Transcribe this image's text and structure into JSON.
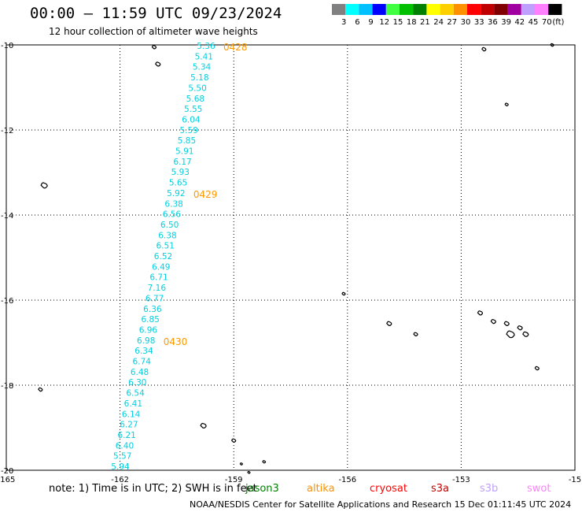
{
  "header": {
    "title": "00:00 – 11:59 UTC 09/23/2024",
    "subtitle": "12 hour collection of altimeter wave heights"
  },
  "legend": {
    "unit": "(ft)",
    "bins": [
      {
        "label": "3",
        "color": "#808080"
      },
      {
        "label": "6",
        "color": "#00ffff"
      },
      {
        "label": "9",
        "color": "#00c0ff"
      },
      {
        "label": "12",
        "color": "#0000ff"
      },
      {
        "label": "15",
        "color": "#40ff40"
      },
      {
        "label": "18",
        "color": "#00c000"
      },
      {
        "label": "21",
        "color": "#008000"
      },
      {
        "label": "24",
        "color": "#ffff00"
      },
      {
        "label": "27",
        "color": "#ffd000"
      },
      {
        "label": "30",
        "color": "#ff9000"
      },
      {
        "label": "33",
        "color": "#ff0000"
      },
      {
        "label": "36",
        "color": "#c00000"
      },
      {
        "label": "39",
        "color": "#800000"
      },
      {
        "label": "42",
        "color": "#a000a0"
      },
      {
        "label": "45",
        "color": "#c0a0ff"
      },
      {
        "label": "70",
        "color": "#ff80ff"
      },
      {
        "label": "",
        "color": "#000000"
      }
    ]
  },
  "axes": {
    "lon_ticks": [
      "-165",
      "-162",
      "-159",
      "-156",
      "-153",
      "-15"
    ],
    "lat_ticks": [
      "-10",
      "-12",
      "-14",
      "-16",
      "-18",
      "-20"
    ]
  },
  "chart_data": {
    "type": "scatter",
    "x_range": [
      -165,
      -150
    ],
    "y_range": [
      -20,
      -10
    ],
    "track_color": "#00d0e0",
    "track_values": [
      "5.36",
      "5.41",
      "5.34",
      "5.18",
      "5.50",
      "5.68",
      "5.55",
      "6.04",
      "5.59",
      "5.85",
      "5.91",
      "6.17",
      "5.93",
      "5.65",
      "5.92",
      "6.38",
      "6.56",
      "6.50",
      "6.38",
      "6.51",
      "6.52",
      "6.49",
      "6.71",
      "7.16",
      "6.77",
      "6.36",
      "6.85",
      "6.96",
      "6.98",
      "6.34",
      "6.74",
      "6.48",
      "6.30",
      "6.54",
      "6.41",
      "6.14",
      "6.27",
      "6.21",
      "6.40",
      "5.57",
      "5.94"
    ],
    "time_labels": [
      {
        "text": "0428",
        "track_index": 0
      },
      {
        "text": "0429",
        "track_index": 14
      },
      {
        "text": "0430",
        "track_index": 28
      }
    ],
    "time_label_color": "#ff9900"
  },
  "note": "note:  1) Time is in UTC; 2) SWH is in feet",
  "satellites": [
    {
      "name": "jason3",
      "color": "#008000"
    },
    {
      "name": "altika",
      "color": "#ff9000"
    },
    {
      "name": "cryosat",
      "color": "#ff0000"
    },
    {
      "name": "s3a",
      "color": "#c00000"
    },
    {
      "name": "s3b",
      "color": "#c0a0ff"
    },
    {
      "name": "swot",
      "color": "#ff80ff"
    }
  ],
  "footer": "NOAA/NESDIS Center for Satellite Applications and Research    15 Dec 01:11:45 UTC 2024"
}
